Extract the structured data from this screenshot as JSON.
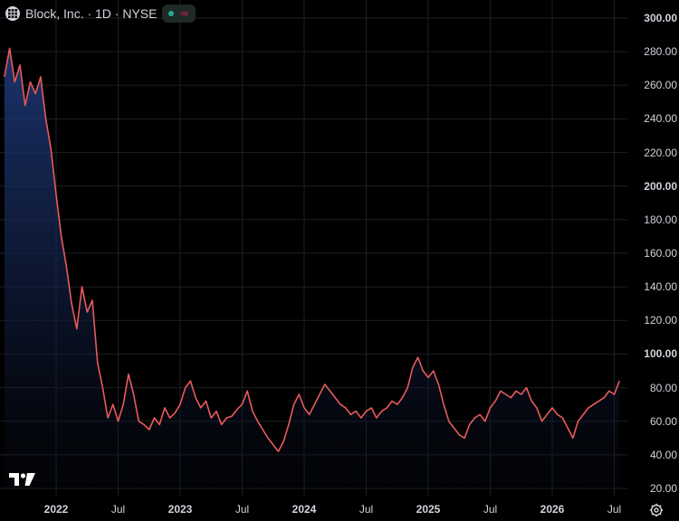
{
  "header": {
    "title": "Block, Inc. · 1D · NYSE",
    "wave_glyph": "≈"
  },
  "colors": {
    "line": "#e85a5a",
    "area_top": "#1e3a7a",
    "background": "#000000",
    "grid": "#1c1f26",
    "status_dot": "#22ab94",
    "badge_wave": "#c2185b"
  },
  "icons": [
    "grid-icon",
    "wave-icon",
    "tradingview-logo-icon",
    "settings-icon"
  ],
  "chart_data": {
    "type": "area",
    "title": "",
    "xlabel": "",
    "ylabel": "",
    "ylim": [
      20,
      300
    ],
    "yticks": [
      "300.00",
      "280.00",
      "260.00",
      "240.00",
      "220.00",
      "200.00",
      "180.00",
      "160.00",
      "140.00",
      "120.00",
      "100.00",
      "80.00",
      "60.00",
      "40.00",
      "20.00"
    ],
    "yticks_bold": [
      "300.00",
      "200.00",
      "100.00"
    ],
    "xticks": [
      {
        "label": "2022",
        "date": "2022-01",
        "major": true
      },
      {
        "label": "Jul",
        "date": "2022-07",
        "major": false
      },
      {
        "label": "2023",
        "date": "2023-01",
        "major": true
      },
      {
        "label": "Jul",
        "date": "2023-07",
        "major": false
      },
      {
        "label": "2024",
        "date": "2024-01",
        "major": true
      },
      {
        "label": "Jul",
        "date": "2024-07",
        "major": false
      },
      {
        "label": "2025",
        "date": "2025-01",
        "major": true
      },
      {
        "label": "Jul",
        "date": "2025-07",
        "major": false
      },
      {
        "label": "2026",
        "date": "2026-01",
        "major": true
      },
      {
        "label": "Jul",
        "date": "2026-07",
        "major": false
      }
    ],
    "grid": true,
    "series": [
      {
        "points": [
          [
            "2021-08",
            265
          ],
          [
            "2021-08",
            282
          ],
          [
            "2021-09",
            262
          ],
          [
            "2021-09",
            272
          ],
          [
            "2021-10",
            248
          ],
          [
            "2021-10",
            262
          ],
          [
            "2021-11",
            255
          ],
          [
            "2021-11",
            265
          ],
          [
            "2021-12",
            240
          ],
          [
            "2021-12",
            222
          ],
          [
            "2022-01",
            195
          ],
          [
            "2022-01",
            170
          ],
          [
            "2022-02",
            152
          ],
          [
            "2022-02",
            130
          ],
          [
            "2022-03",
            115
          ],
          [
            "2022-03",
            140
          ],
          [
            "2022-04",
            125
          ],
          [
            "2022-04",
            132
          ],
          [
            "2022-05",
            95
          ],
          [
            "2022-05",
            80
          ],
          [
            "2022-06",
            62
          ],
          [
            "2022-06",
            70
          ],
          [
            "2022-07",
            60
          ],
          [
            "2022-07",
            70
          ],
          [
            "2022-08",
            88
          ],
          [
            "2022-08",
            76
          ],
          [
            "2022-09",
            60
          ],
          [
            "2022-09",
            58
          ],
          [
            "2022-10",
            55
          ],
          [
            "2022-10",
            62
          ],
          [
            "2022-11",
            58
          ],
          [
            "2022-11",
            68
          ],
          [
            "2022-12",
            62
          ],
          [
            "2022-12",
            65
          ],
          [
            "2023-01",
            70
          ],
          [
            "2023-01",
            80
          ],
          [
            "2023-02",
            84
          ],
          [
            "2023-02",
            74
          ],
          [
            "2023-03",
            68
          ],
          [
            "2023-03",
            72
          ],
          [
            "2023-04",
            62
          ],
          [
            "2023-04",
            66
          ],
          [
            "2023-05",
            58
          ],
          [
            "2023-05",
            62
          ],
          [
            "2023-06",
            63
          ],
          [
            "2023-06",
            67
          ],
          [
            "2023-07",
            70
          ],
          [
            "2023-07",
            78
          ],
          [
            "2023-08",
            66
          ],
          [
            "2023-08",
            60
          ],
          [
            "2023-09",
            55
          ],
          [
            "2023-09",
            50
          ],
          [
            "2023-10",
            46
          ],
          [
            "2023-10",
            42
          ],
          [
            "2023-11",
            48
          ],
          [
            "2023-11",
            58
          ],
          [
            "2023-12",
            70
          ],
          [
            "2023-12",
            76
          ],
          [
            "2024-01",
            68
          ],
          [
            "2024-01",
            64
          ],
          [
            "2024-02",
            70
          ],
          [
            "2024-02",
            76
          ],
          [
            "2024-03",
            82
          ],
          [
            "2024-03",
            78
          ],
          [
            "2024-04",
            74
          ],
          [
            "2024-04",
            70
          ],
          [
            "2024-05",
            68
          ],
          [
            "2024-05",
            64
          ],
          [
            "2024-06",
            66
          ],
          [
            "2024-06",
            62
          ],
          [
            "2024-07",
            66
          ],
          [
            "2024-07",
            68
          ],
          [
            "2024-08",
            62
          ],
          [
            "2024-08",
            66
          ],
          [
            "2024-09",
            68
          ],
          [
            "2024-09",
            72
          ],
          [
            "2024-10",
            70
          ],
          [
            "2024-10",
            74
          ],
          [
            "2024-11",
            80
          ],
          [
            "2024-11",
            92
          ],
          [
            "2024-12",
            98
          ],
          [
            "2024-12",
            90
          ],
          [
            "2025-01",
            86
          ],
          [
            "2025-01",
            90
          ],
          [
            "2025-02",
            82
          ],
          [
            "2025-02",
            70
          ],
          [
            "2025-03",
            60
          ],
          [
            "2025-03",
            56
          ],
          [
            "2025-04",
            52
          ],
          [
            "2025-04",
            50
          ],
          [
            "2025-05",
            58
          ],
          [
            "2025-05",
            62
          ],
          [
            "2025-06",
            64
          ],
          [
            "2025-06",
            60
          ],
          [
            "2025-07",
            68
          ],
          [
            "2025-07",
            72
          ],
          [
            "2025-08",
            78
          ],
          [
            "2025-08",
            76
          ],
          [
            "2025-09",
            74
          ],
          [
            "2025-09",
            78
          ],
          [
            "2025-10",
            76
          ],
          [
            "2025-10",
            80
          ],
          [
            "2025-11",
            72
          ],
          [
            "2025-11",
            68
          ],
          [
            "2025-12",
            60
          ],
          [
            "2025-12",
            64
          ],
          [
            "2026-01",
            68
          ],
          [
            "2026-01",
            64
          ],
          [
            "2026-02",
            62
          ],
          [
            "2026-02",
            56
          ],
          [
            "2026-03",
            50
          ],
          [
            "2026-03",
            60
          ],
          [
            "2026-04",
            64
          ],
          [
            "2026-04",
            68
          ],
          [
            "2026-05",
            70
          ],
          [
            "2026-05",
            72
          ],
          [
            "2026-06",
            74
          ],
          [
            "2026-06",
            78
          ],
          [
            "2026-07",
            76
          ],
          [
            "2026-07",
            84
          ]
        ]
      }
    ]
  }
}
